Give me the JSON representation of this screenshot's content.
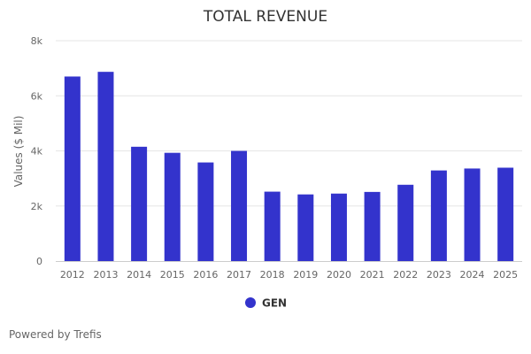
{
  "chart_data": {
    "type": "bar",
    "title": "TOTAL REVENUE",
    "ylabel": "Values ($ Mil)",
    "xlabel": "",
    "categories": [
      "2012",
      "2013",
      "2014",
      "2015",
      "2016",
      "2017",
      "2018",
      "2019",
      "2020",
      "2021",
      "2022",
      "2023",
      "2024",
      "2025"
    ],
    "series": [
      {
        "name": "GEN",
        "color": "#3333cc",
        "values": [
          6700,
          6870,
          4150,
          3930,
          3580,
          4000,
          2520,
          2420,
          2450,
          2510,
          2770,
          3290,
          3360,
          3390
        ]
      }
    ],
    "ylim": [
      0,
      8000
    ],
    "yticks": [
      {
        "value": 0,
        "label": "0"
      },
      {
        "value": 2000,
        "label": "2k"
      },
      {
        "value": 4000,
        "label": "4k"
      },
      {
        "value": 6000,
        "label": "6k"
      },
      {
        "value": 8000,
        "label": "8k"
      }
    ],
    "grid": true,
    "legend_position": "bottom-center"
  },
  "credits": "Powered by Trefis"
}
